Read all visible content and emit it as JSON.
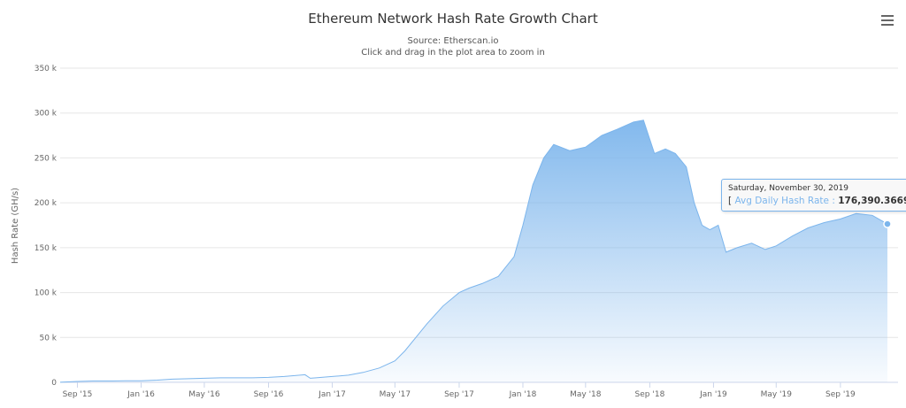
{
  "chart_data": {
    "type": "area",
    "title": "Ethereum Network Hash Rate Growth Chart",
    "subtitle_source": "Source: Etherscan.io",
    "subtitle_hint": "Click and drag in the plot area to zoom in",
    "ylabel": "Hash Rate (GH/s)",
    "xlabel": "",
    "ylim": [
      0,
      350000
    ],
    "xlim": [
      "2015-07-30",
      "2019-11-30"
    ],
    "grid": true,
    "y_ticks": [
      "0",
      "50 k",
      "100 k",
      "150 k",
      "200 k",
      "250 k",
      "300 k",
      "350 k"
    ],
    "x_ticks": [
      {
        "date": "2015-09-01",
        "label": "Sep '15"
      },
      {
        "date": "2016-01-01",
        "label": "Jan '16"
      },
      {
        "date": "2016-05-01",
        "label": "May '16"
      },
      {
        "date": "2016-09-01",
        "label": "Sep '16"
      },
      {
        "date": "2017-01-01",
        "label": "Jan '17"
      },
      {
        "date": "2017-05-01",
        "label": "May '17"
      },
      {
        "date": "2017-09-01",
        "label": "Sep '17"
      },
      {
        "date": "2018-01-01",
        "label": "Jan '18"
      },
      {
        "date": "2018-05-01",
        "label": "May '18"
      },
      {
        "date": "2018-09-01",
        "label": "Sep '18"
      },
      {
        "date": "2019-01-01",
        "label": "Jan '19"
      },
      {
        "date": "2019-05-01",
        "label": "May '19"
      },
      {
        "date": "2019-09-01",
        "label": "Sep '19"
      }
    ],
    "series": [
      {
        "name": "Avg Daily Hash Rate",
        "color": "#7cb5ec",
        "points": [
          [
            "2015-07-30",
            100
          ],
          [
            "2015-09-01",
            1000
          ],
          [
            "2015-10-01",
            1500
          ],
          [
            "2015-11-01",
            1500
          ],
          [
            "2015-12-01",
            1700
          ],
          [
            "2016-01-01",
            1800
          ],
          [
            "2016-02-01",
            2500
          ],
          [
            "2016-03-01",
            3500
          ],
          [
            "2016-04-01",
            4000
          ],
          [
            "2016-05-01",
            4500
          ],
          [
            "2016-06-01",
            5000
          ],
          [
            "2016-07-01",
            5000
          ],
          [
            "2016-08-01",
            5000
          ],
          [
            "2016-09-01",
            5500
          ],
          [
            "2016-10-01",
            6500
          ],
          [
            "2016-11-10",
            8500
          ],
          [
            "2016-11-20",
            4500
          ],
          [
            "2016-12-01",
            5000
          ],
          [
            "2017-01-01",
            6500
          ],
          [
            "2017-02-01",
            8000
          ],
          [
            "2017-03-01",
            11000
          ],
          [
            "2017-04-01",
            16000
          ],
          [
            "2017-05-01",
            24000
          ],
          [
            "2017-05-20",
            35000
          ],
          [
            "2017-06-10",
            50000
          ],
          [
            "2017-07-01",
            65000
          ],
          [
            "2017-08-01",
            85000
          ],
          [
            "2017-09-01",
            100000
          ],
          [
            "2017-09-20",
            105000
          ],
          [
            "2017-10-15",
            110000
          ],
          [
            "2017-11-15",
            118000
          ],
          [
            "2017-12-15",
            140000
          ],
          [
            "2018-01-01",
            175000
          ],
          [
            "2018-01-20",
            220000
          ],
          [
            "2018-02-10",
            250000
          ],
          [
            "2018-03-01",
            265000
          ],
          [
            "2018-04-01",
            258000
          ],
          [
            "2018-05-01",
            262000
          ],
          [
            "2018-06-01",
            275000
          ],
          [
            "2018-07-01",
            282000
          ],
          [
            "2018-08-01",
            290000
          ],
          [
            "2018-08-20",
            292000
          ],
          [
            "2018-09-10",
            255000
          ],
          [
            "2018-10-01",
            260000
          ],
          [
            "2018-10-20",
            255000
          ],
          [
            "2018-11-10",
            240000
          ],
          [
            "2018-11-25",
            200000
          ],
          [
            "2018-12-10",
            175000
          ],
          [
            "2018-12-25",
            170000
          ],
          [
            "2019-01-10",
            175000
          ],
          [
            "2019-01-25",
            145000
          ],
          [
            "2019-02-15",
            150000
          ],
          [
            "2019-03-15",
            155000
          ],
          [
            "2019-04-10",
            148000
          ],
          [
            "2019-05-01",
            152000
          ],
          [
            "2019-06-01",
            163000
          ],
          [
            "2019-07-01",
            172000
          ],
          [
            "2019-08-01",
            178000
          ],
          [
            "2019-09-01",
            182000
          ],
          [
            "2019-10-01",
            188000
          ],
          [
            "2019-11-01",
            186000
          ],
          [
            "2019-11-30",
            176390.3669
          ]
        ]
      }
    ],
    "tooltip": {
      "date": "Saturday, November 30, 2019",
      "series": "Avg Daily Hash Rate",
      "value": "176,390.3669",
      "open": "[ ",
      "sep": " : ",
      "close": " ]"
    }
  }
}
